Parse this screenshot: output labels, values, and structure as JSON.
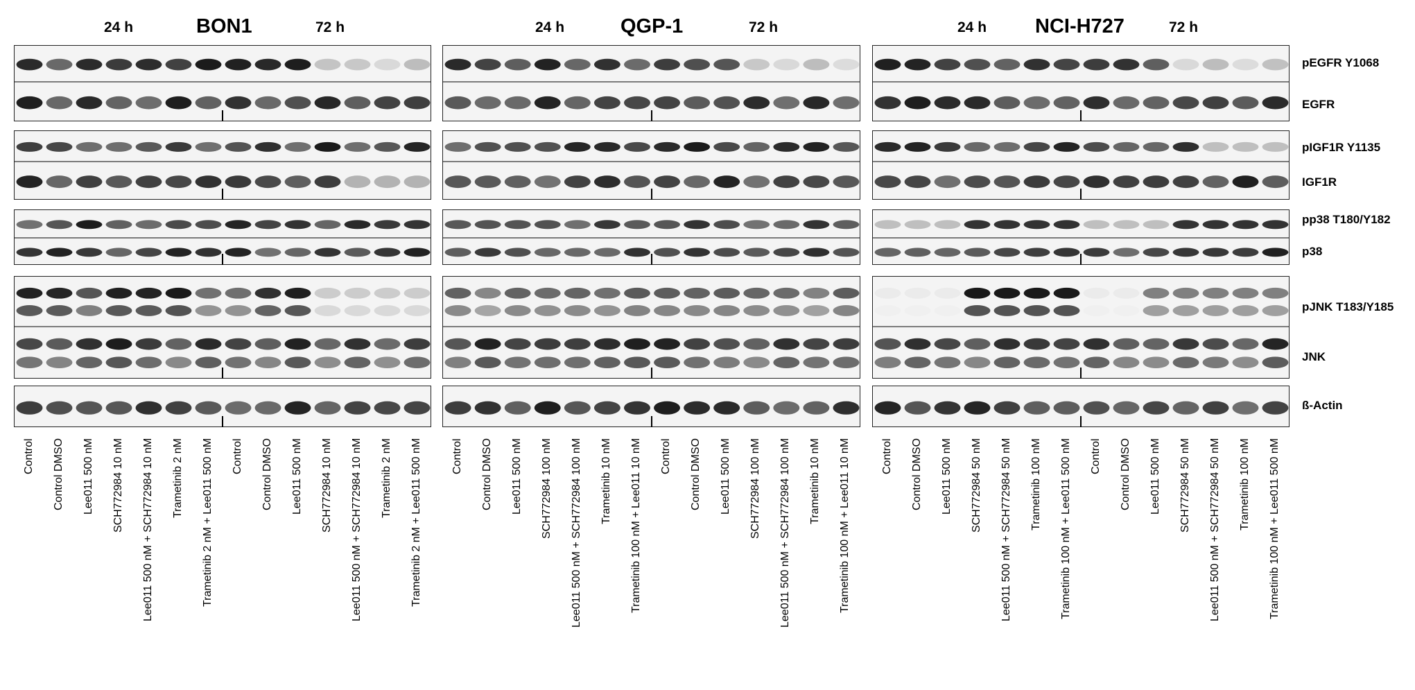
{
  "time_labels": {
    "early": "24 h",
    "late": "72 h"
  },
  "protein_labels": [
    "pEGFR Y1068",
    "EGFR",
    "pIGF1R Y1135",
    "IGF1R",
    "pp38 T180/Y182",
    "p38",
    "pJNK T183/Y185",
    "JNK",
    "ß-Actin"
  ],
  "panels": [
    {
      "cell_line": "BON1",
      "lanes": [
        "Control",
        "Control DMSO",
        "Lee011 500 nM",
        "SCH772984 10 nM",
        "Lee011 500 nM + SCH772984 10 nM",
        "Trametinib 2 nM",
        "Trametinib 2 nM + Lee011 500 nM",
        "Control",
        "Control DMSO",
        "Lee011 500 nM",
        "SCH772984 10 nM",
        "Lee011 500 nM + SCH772984 10 nM",
        "Trametinib 2 nM",
        "Trametinib 2 nM + Lee011 500 nM"
      ]
    },
    {
      "cell_line": "QGP-1",
      "lanes": [
        "Control",
        "Control DMSO",
        "Lee011 500 nM",
        "SCH772984 100 nM",
        "Lee011 500 nM + SCH772984 100 nM",
        "Trametinib 10 nM",
        "Trametinib 100 nM + Lee011 10 nM",
        "Control",
        "Control DMSO",
        "Lee011 500 nM",
        "SCH772984 100 nM",
        "Lee011 500 nM + SCH772984 100 nM",
        "Trametinib 10 nM",
        "Trametinib 100 nM + Lee011 10 nM"
      ]
    },
    {
      "cell_line": "NCI-H727",
      "lanes": [
        "Control",
        "Control DMSO",
        "Lee011 500 nM",
        "SCH772984 50 nM",
        "Lee011 500 nM + SCH772984 50 nM",
        "Trametinib 100 nM",
        "Trametinib 100 nM + Lee011 500 nM",
        "Control",
        "Control DMSO",
        "Lee011 500 nM",
        "SCH772984 50 nM",
        "Lee011 500 nM + SCH772984 50 nM",
        "Trametinib 100 nM",
        "Trametinib 100 nM + Lee011 500 nM"
      ]
    }
  ]
}
